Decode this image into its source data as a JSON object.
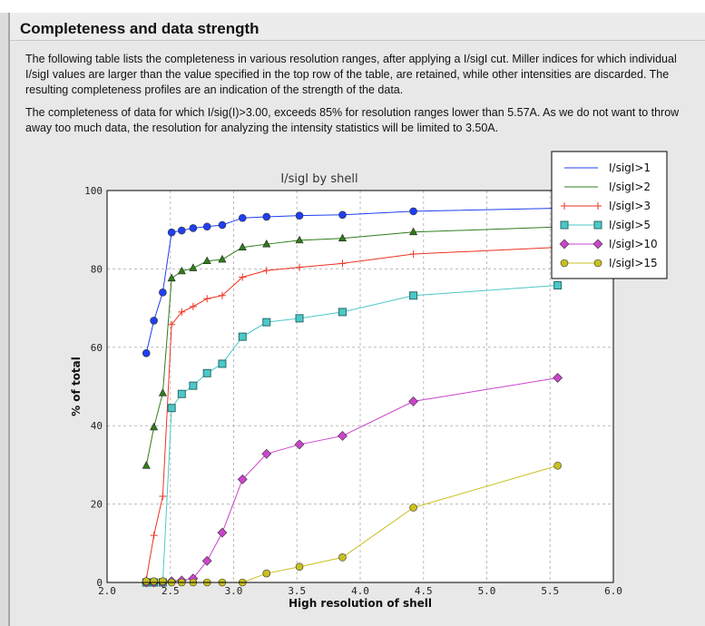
{
  "header": {
    "title": "Completeness and data strength"
  },
  "text": {
    "p1": "The following table lists the completeness in various resolution ranges, after applying a I/sigI cut. Miller indices for which individual I/sigI values are larger than the value specified in the top row of the table, are retained, while other intensities are discarded. The resulting completeness profiles are an indication of the strength of the data.",
    "p2": "The completeness of data for which I/sig(I)>3.00, exceeds  85% for resolution ranges lower than 5.57A. As we do not want to throw away too much data, the resolution for analyzing the intensity statistics will be limited to 3.50A."
  },
  "chart_data": {
    "type": "line",
    "title": "I/sigI by shell",
    "xlabel": "High resolution of shell",
    "ylabel": "% of total",
    "xlim": [
      2.0,
      6.0
    ],
    "ylim": [
      0,
      100
    ],
    "xticks": [
      "2.0",
      "2.5",
      "3.0",
      "3.5",
      "4.0",
      "4.5",
      "5.0",
      "5.5",
      "6.0"
    ],
    "yticks": [
      "0",
      "20",
      "40",
      "60",
      "80",
      "100"
    ],
    "grid": true,
    "legend": "top-right",
    "x": [
      2.31,
      2.37,
      2.44,
      2.51,
      2.59,
      2.68,
      2.79,
      2.91,
      3.07,
      3.26,
      3.52,
      3.86,
      4.42,
      5.56
    ],
    "series": [
      {
        "name": "I/sigI>1",
        "color": "#1f3ff0",
        "marker": "circle",
        "legend_marker": false,
        "values": [
          58.5,
          66.8,
          74.0,
          89.3,
          89.8,
          90.4,
          90.8,
          91.2,
          93.0,
          93.3,
          93.6,
          93.8,
          94.7,
          95.5
        ]
      },
      {
        "name": "I/sigI>2",
        "color": "#2f7d1a",
        "marker": "triangle",
        "legend_marker": false,
        "values": [
          29.8,
          39.6,
          48.3,
          77.6,
          79.4,
          80.2,
          82.0,
          82.4,
          85.5,
          86.3,
          87.3,
          87.8,
          89.4,
          90.7
        ]
      },
      {
        "name": "I/sigI>3",
        "color": "#ee3322",
        "marker": "plus",
        "legend_marker": true,
        "values": [
          0.8,
          12.0,
          22.0,
          65.8,
          69.0,
          70.4,
          72.4,
          73.2,
          77.9,
          79.6,
          80.4,
          81.4,
          83.8,
          85.5
        ]
      },
      {
        "name": "I/sigI>5",
        "color": "#4cc8c8",
        "marker": "square",
        "legend_marker": true,
        "values": [
          0,
          0,
          0,
          44.5,
          48.1,
          50.2,
          53.4,
          55.8,
          62.7,
          66.4,
          67.4,
          69.0,
          73.2,
          75.8
        ]
      },
      {
        "name": "I/sigI>10",
        "color": "#cc44cc",
        "marker": "diamond",
        "legend_marker": true,
        "values": [
          0,
          0,
          0,
          0.3,
          0.5,
          1.0,
          5.5,
          12.7,
          26.3,
          32.8,
          35.2,
          37.4,
          46.2,
          52.2
        ]
      },
      {
        "name": "I/sigI>15",
        "color": "#c8c020",
        "marker": "circle",
        "legend_marker": true,
        "values": [
          0.3,
          0.3,
          0.3,
          0,
          0,
          0,
          0,
          0,
          0,
          2.3,
          4.0,
          6.4,
          19.1,
          29.8
        ]
      }
    ]
  }
}
